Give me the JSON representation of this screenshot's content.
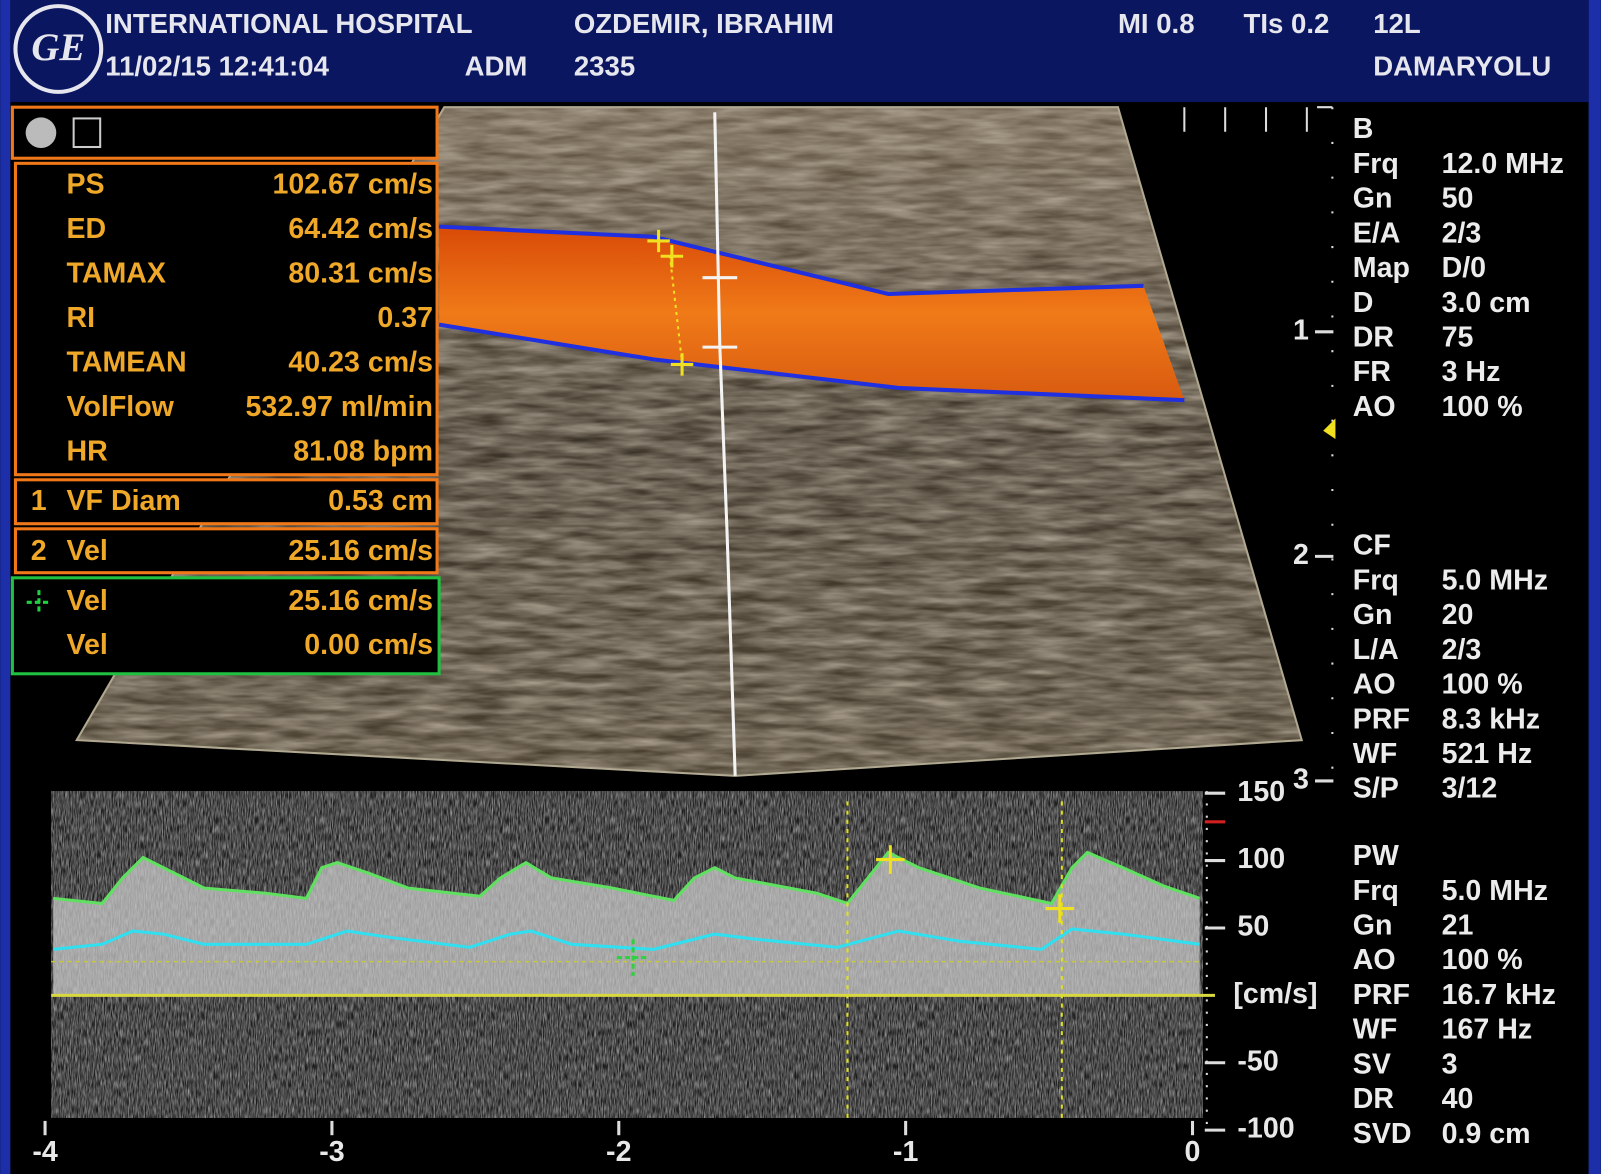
{
  "header": {
    "logo": "GE",
    "hospital": "INTERNATIONAL HOSPITAL",
    "datetime": "11/02/15 12:41:04",
    "operator": "ADM",
    "patient": "OZDEMIR, IBRAHIM",
    "patient_id": "2335",
    "mi": "MI 0.8",
    "tis": "TIs 0.2",
    "probe": "12L",
    "preset": "DAMARYOLU"
  },
  "measurements": [
    {
      "label": "PS",
      "value": "102.67 cm/s"
    },
    {
      "label": "ED",
      "value": "64.42 cm/s"
    },
    {
      "label": "TAMAX",
      "value": "80.31 cm/s"
    },
    {
      "label": "RI",
      "value": "0.37"
    },
    {
      "label": "TAMEAN",
      "value": "40.23 cm/s"
    },
    {
      "label": "VolFlow",
      "value": "532.97 ml/min"
    },
    {
      "label": "HR",
      "value": "81.08 bpm"
    }
  ],
  "calipers": [
    {
      "index": 1,
      "label": "VF Diam",
      "value": "0.53 cm"
    },
    {
      "index": 2,
      "label": "Vel",
      "value": "25.16 cm/s"
    }
  ],
  "cursor": [
    {
      "label": "Vel",
      "value": "25.16 cm/s"
    },
    {
      "label": "Vel",
      "value": "0.00 cm/s"
    }
  ],
  "parameters": [
    {
      "mode": "B",
      "rows": [
        {
          "label": "Frq",
          "value": "12.0 MHz"
        },
        {
          "label": "Gn",
          "value": "50"
        },
        {
          "label": "E/A",
          "value": "2/3"
        },
        {
          "label": "Map",
          "value": "D/0"
        },
        {
          "label": "D",
          "value": "3.0 cm"
        },
        {
          "label": "DR",
          "value": "75"
        },
        {
          "label": "FR",
          "value": "3 Hz"
        },
        {
          "label": "AO",
          "value": "100 %"
        }
      ]
    },
    {
      "mode": "CF",
      "rows": [
        {
          "label": "Frq",
          "value": "5.0 MHz"
        },
        {
          "label": "Gn",
          "value": "20"
        },
        {
          "label": "L/A",
          "value": "2/3"
        },
        {
          "label": "AO",
          "value": "100 %"
        },
        {
          "label": "PRF",
          "value": "8.3 kHz"
        },
        {
          "label": "WF",
          "value": "521 Hz"
        },
        {
          "label": "S/P",
          "value": "3/12"
        }
      ]
    },
    {
      "mode": "PW",
      "rows": [
        {
          "label": "Frq",
          "value": "5.0 MHz"
        },
        {
          "label": "Gn",
          "value": "21"
        },
        {
          "label": "AO",
          "value": "100 %"
        },
        {
          "label": "PRF",
          "value": "16.7 kHz"
        },
        {
          "label": "WF",
          "value": "167 Hz"
        },
        {
          "label": "SV",
          "value": "3"
        },
        {
          "label": "DR",
          "value": "40"
        },
        {
          "label": "SVD",
          "value": "0.9 cm"
        }
      ]
    }
  ],
  "depth_scale": [
    1,
    2,
    3
  ],
  "velocity_scale": {
    "ticks": [
      150,
      100,
      50,
      -50,
      -100
    ],
    "unit": "[cm/s]"
  },
  "time_scale": [
    -4,
    -3,
    -2,
    -1,
    0
  ]
}
